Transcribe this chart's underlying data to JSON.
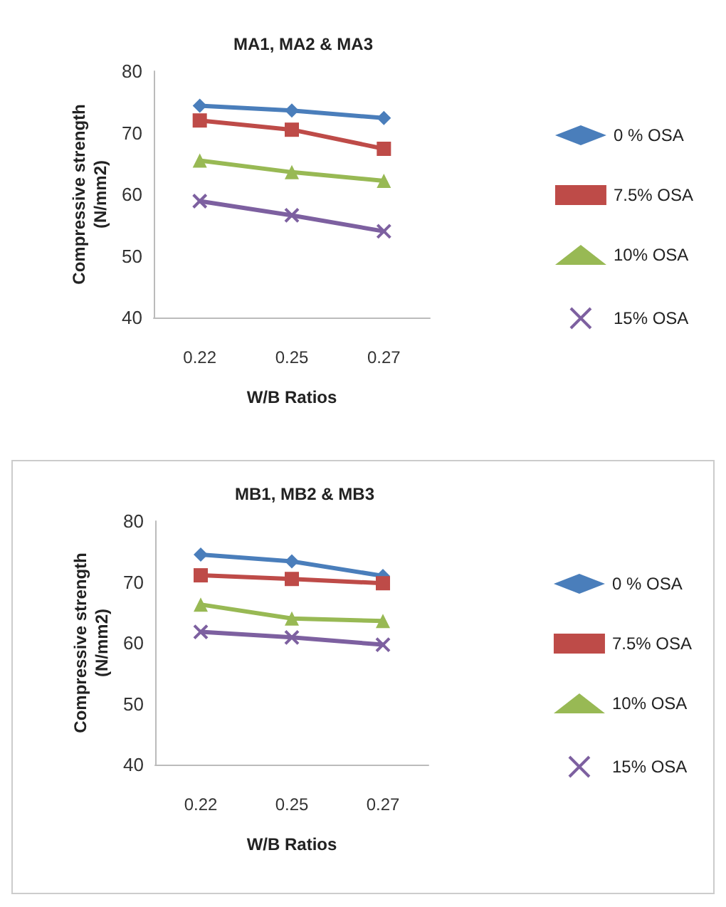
{
  "chart_data": [
    {
      "type": "line",
      "title": "MA1, MA2 & MA3",
      "xlabel": "W/B Ratios",
      "ylabel": "Compressive strength\n(N/mm2)",
      "categories": [
        "0.22",
        "0.25",
        "0.27"
      ],
      "ylim": [
        40,
        80
      ],
      "yticks": [
        40,
        50,
        60,
        70,
        80
      ],
      "grid": false,
      "legend": "right",
      "series": [
        {
          "name": "0 % OSA",
          "color": "#4a7ebb",
          "marker": "diamond",
          "values": [
            74.4,
            73.6,
            72.4
          ]
        },
        {
          "name": "7.5% OSA",
          "color": "#be4b48",
          "marker": "square",
          "values": [
            72.0,
            70.5,
            67.4
          ]
        },
        {
          "name": "10% OSA",
          "color": "#98b954",
          "marker": "triangle",
          "values": [
            65.5,
            63.6,
            62.2
          ]
        },
        {
          "name": "15% OSA",
          "color": "#7d60a0",
          "marker": "cross",
          "values": [
            58.9,
            56.6,
            54.0
          ]
        }
      ]
    },
    {
      "type": "line",
      "title": "MB1, MB2 & MB3",
      "xlabel": "W/B Ratios",
      "ylabel": "Compressive strength\n(N/mm2)",
      "categories": [
        "0.22",
        "0.25",
        "0.27"
      ],
      "ylim": [
        40,
        80
      ],
      "yticks": [
        40,
        50,
        60,
        70,
        80
      ],
      "grid": false,
      "legend": "right",
      "series": [
        {
          "name": "0 % OSA",
          "color": "#4a7ebb",
          "marker": "diamond",
          "values": [
            74.5,
            73.4,
            71.0
          ]
        },
        {
          "name": "7.5% OSA",
          "color": "#be4b48",
          "marker": "square",
          "values": [
            71.1,
            70.5,
            69.8
          ]
        },
        {
          "name": "10% OSA",
          "color": "#98b954",
          "marker": "triangle",
          "values": [
            66.3,
            64.0,
            63.6
          ]
        },
        {
          "name": "15% OSA",
          "color": "#7d60a0",
          "marker": "cross",
          "values": [
            61.8,
            60.9,
            59.7
          ]
        }
      ]
    }
  ]
}
